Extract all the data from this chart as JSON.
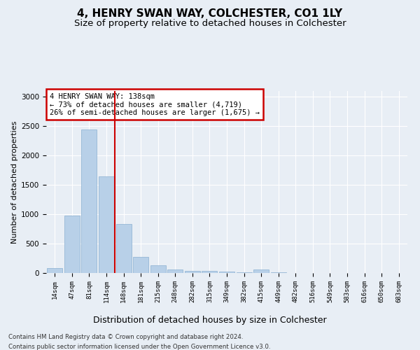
{
  "title": "4, HENRY SWAN WAY, COLCHESTER, CO1 1LY",
  "subtitle": "Size of property relative to detached houses in Colchester",
  "xlabel": "Distribution of detached houses by size in Colchester",
  "ylabel": "Number of detached properties",
  "footnote1": "Contains HM Land Registry data © Crown copyright and database right 2024.",
  "footnote2": "Contains public sector information licensed under the Open Government Licence v3.0.",
  "categories": [
    "14sqm",
    "47sqm",
    "81sqm",
    "114sqm",
    "148sqm",
    "181sqm",
    "215sqm",
    "248sqm",
    "282sqm",
    "315sqm",
    "349sqm",
    "382sqm",
    "415sqm",
    "449sqm",
    "482sqm",
    "516sqm",
    "549sqm",
    "583sqm",
    "616sqm",
    "650sqm",
    "683sqm"
  ],
  "values": [
    80,
    980,
    2450,
    1650,
    840,
    270,
    135,
    65,
    40,
    30,
    20,
    15,
    55,
    10,
    5,
    5,
    5,
    5,
    5,
    5,
    5
  ],
  "bar_color": "#b8d0e8",
  "bar_edge_color": "#8ab0d0",
  "vline_x": 3.5,
  "vline_color": "#cc0000",
  "annotation_box_text": "4 HENRY SWAN WAY: 138sqm\n← 73% of detached houses are smaller (4,719)\n26% of semi-detached houses are larger (1,675) →",
  "ylim": [
    0,
    3100
  ],
  "yticks": [
    0,
    500,
    1000,
    1500,
    2000,
    2500,
    3000
  ],
  "bg_color": "#e8eef5",
  "plot_bg_color": "#e8eef5",
  "grid_color": "#ffffff",
  "title_fontsize": 11,
  "subtitle_fontsize": 9.5,
  "xlabel_fontsize": 9,
  "ylabel_fontsize": 8
}
